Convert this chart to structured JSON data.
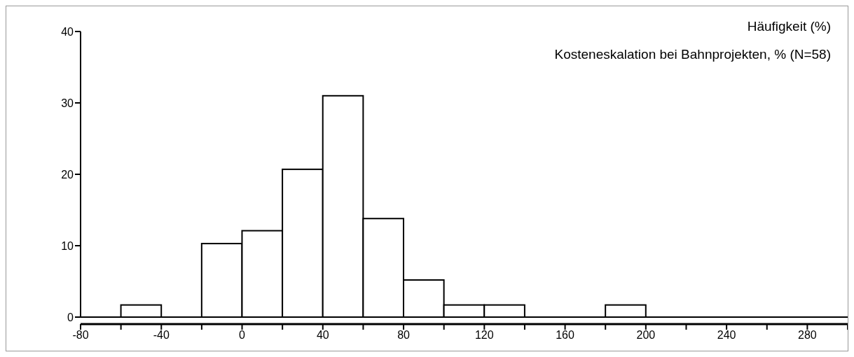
{
  "chart_data": {
    "type": "histogram",
    "title": "Kosteneskalation bei Bahnprojekten, % (N=58)",
    "ylabel": "Häufigkeit (%)",
    "bins": [
      -80,
      -60,
      -40,
      -20,
      0,
      20,
      40,
      60,
      80,
      100,
      120,
      140,
      160,
      180,
      200,
      220,
      240,
      260,
      280,
      300
    ],
    "values": [
      0,
      1.7,
      0,
      10.3,
      12.1,
      20.7,
      31.0,
      13.8,
      5.2,
      1.7,
      1.7,
      0,
      0,
      1.7,
      0,
      0,
      0,
      0,
      0
    ],
    "color": "#ffffff",
    "xlim": [
      -80,
      300
    ],
    "ylim": [
      0,
      40
    ],
    "xticks": [
      -80,
      {
        "value": -60,
        "label": null
      },
      -40,
      {
        "value": -20,
        "label": null
      },
      0,
      {
        "value": 20,
        "label": null
      },
      40,
      {
        "value": 60,
        "label": null
      },
      80,
      {
        "value": 100,
        "label": null
      },
      120,
      {
        "value": 140,
        "label": null
      },
      160,
      {
        "value": 180,
        "label": null
      },
      200,
      {
        "value": 220,
        "label": null
      },
      240,
      {
        "value": 260,
        "label": null
      },
      280,
      {
        "value": 300,
        "label": null
      }
    ],
    "yticks": [
      0,
      10,
      20,
      30,
      40
    ],
    "grid": false,
    "legend": false
  }
}
